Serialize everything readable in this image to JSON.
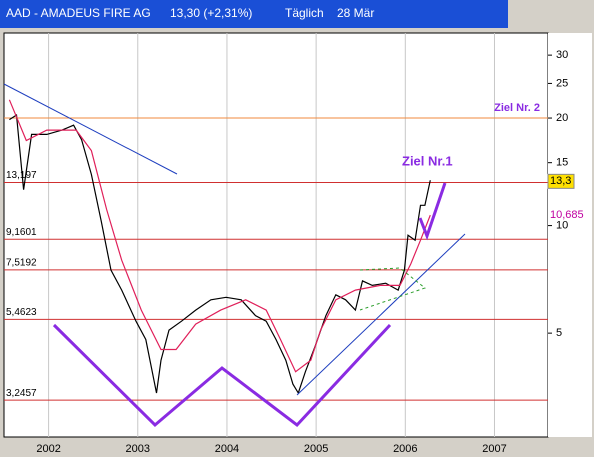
{
  "header": {
    "symbol": "AAD - AMADEUS FIRE AG",
    "quote": "13,30 (+2,31%)",
    "period": "Täglich",
    "date": "28 Mär"
  },
  "chart_data": {
    "type": "line",
    "log_scale": true,
    "xlim": [
      2001.5,
      2007.6
    ],
    "xticks": [
      2002,
      2003,
      2004,
      2005,
      2006,
      2007
    ],
    "ylim": [
      2.56,
      34.6
    ],
    "yticks": [
      5,
      10,
      15,
      20,
      25,
      30
    ],
    "series": [
      {
        "color": "#000000",
        "x": [
          2001.56,
          2001.64,
          2001.72,
          2001.81,
          2001.98,
          2002.15,
          2002.28,
          2002.37,
          2002.48,
          2002.59,
          2002.7,
          2002.82,
          2002.98,
          2003.09,
          2003.21,
          2003.26,
          2003.35,
          2003.49,
          2003.65,
          2003.82,
          2003.99,
          2004.16,
          2004.32,
          2004.44,
          2004.55,
          2004.66,
          2004.74,
          2004.8,
          2004.88,
          2004.99,
          2005.11,
          2005.22,
          2005.33,
          2005.44,
          2005.52,
          2005.63,
          2005.78,
          2005.92,
          2005.99,
          2006.03,
          2006.11,
          2006.17,
          2006.22,
          2006.28
        ],
        "values": [
          19.8,
          20.4,
          12.6,
          18.0,
          18.0,
          18.5,
          19.1,
          17.4,
          13.9,
          10.3,
          7.5,
          6.6,
          5.4,
          4.8,
          3.4,
          4.2,
          5.1,
          5.4,
          5.8,
          6.2,
          6.3,
          6.2,
          5.6,
          5.4,
          4.8,
          4.2,
          3.6,
          3.4,
          3.9,
          4.6,
          5.6,
          6.4,
          6.2,
          5.8,
          7.0,
          6.8,
          6.9,
          6.6,
          7.5,
          9.4,
          9.1,
          11.4,
          11.4,
          13.4
        ]
      },
      {
        "color": "#e0205a",
        "x": [
          2001.56,
          2001.75,
          2001.98,
          2002.31,
          2002.48,
          2002.65,
          2002.82,
          2003.04,
          2003.26,
          2003.43,
          2003.65,
          2003.93,
          2004.21,
          2004.44,
          2004.6,
          2004.77,
          2004.94,
          2005.05,
          2005.22,
          2005.44,
          2005.72,
          2005.94,
          2006.06,
          2006.17,
          2006.28
        ],
        "values": [
          22.5,
          17.3,
          18.5,
          18.5,
          16.2,
          11.1,
          8.0,
          5.8,
          4.5,
          4.5,
          5.3,
          5.8,
          6.2,
          5.8,
          4.8,
          3.9,
          4.2,
          5.1,
          6.2,
          6.6,
          6.8,
          6.8,
          7.8,
          9.1,
          10.7
        ]
      }
    ],
    "levels": [
      {
        "value": 13.197,
        "label": "13,197"
      },
      {
        "value": 9.1601,
        "label": "9,1601"
      },
      {
        "value": 7.5192,
        "label": "7,5192"
      },
      {
        "value": 5.4623,
        "label": "5,4623"
      },
      {
        "value": 3.2457,
        "label": "3,2457"
      }
    ],
    "target_2": {
      "value": 20,
      "label": "Ziel Nr. 2"
    },
    "target_1": "Ziel Nr.1",
    "price_tags": [
      {
        "value": 13.3,
        "label": "13,3"
      },
      {
        "value": 10.685,
        "label": "10,685"
      }
    ]
  }
}
